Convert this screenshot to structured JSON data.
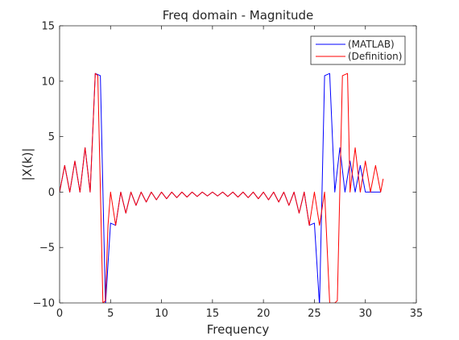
{
  "chart_data": {
    "type": "line",
    "title": "Freq domain - Magnitude",
    "xlabel": "Frequency",
    "ylabel": "|X(k)|",
    "xlim": [
      0,
      35
    ],
    "ylim": [
      -10,
      15
    ],
    "xticks": [
      0,
      5,
      10,
      15,
      20,
      25,
      30,
      35
    ],
    "yticks": [
      -10,
      -5,
      0,
      5,
      10,
      15
    ],
    "grid": false,
    "legend_position": "top-right",
    "series": [
      {
        "name": "(MATLAB)",
        "color": "#0000ff",
        "x": [
          0,
          0.5,
          1,
          1.5,
          2,
          2.5,
          3,
          3.5,
          4,
          4.5,
          5,
          5.5,
          6,
          6.5,
          7,
          7.5,
          8,
          8.5,
          9,
          9.5,
          10,
          10.5,
          11,
          11.5,
          12,
          12.5,
          13,
          13.5,
          14,
          14.5,
          15,
          15.5,
          16,
          16.5,
          17,
          17.5,
          18,
          18.5,
          19,
          19.5,
          20,
          20.5,
          21,
          21.5,
          22,
          22.5,
          23,
          23.5,
          24,
          24.5,
          25,
          25.5,
          26,
          26.5,
          27,
          27.5,
          28,
          28.5,
          29,
          29.5,
          30,
          30.5,
          31,
          31.5
        ],
        "y": [
          0,
          2.4,
          0,
          2.8,
          0,
          4.0,
          0,
          10.7,
          10.5,
          -10.2,
          -2.8,
          -3.0,
          0,
          -1.9,
          0,
          -1.2,
          0,
          -0.9,
          0,
          -0.7,
          0,
          -0.6,
          0,
          -0.5,
          0,
          -0.45,
          0,
          -0.4,
          0,
          -0.35,
          0,
          -0.35,
          0,
          -0.4,
          0,
          -0.45,
          0,
          -0.5,
          0,
          -0.6,
          0,
          -0.7,
          0,
          -0.9,
          0,
          -1.2,
          0,
          -1.9,
          0,
          -3.0,
          -2.8,
          -10.2,
          10.5,
          10.7,
          0,
          4.0,
          0,
          2.8,
          0,
          2.4,
          0,
          0,
          0,
          0
        ]
      },
      {
        "name": "(Definition)",
        "color": "#ff0000",
        "x": [
          0,
          0.5,
          1,
          1.5,
          2,
          2.5,
          3,
          3.5,
          3.75,
          4.25,
          4.5,
          4.75,
          5,
          5.5,
          6,
          6.5,
          7,
          7.5,
          8,
          8.5,
          9,
          9.5,
          10,
          10.5,
          11,
          11.5,
          12,
          12.5,
          13,
          13.5,
          14,
          14.5,
          15,
          15.5,
          16,
          16.5,
          17,
          17.5,
          18,
          18.5,
          19,
          19.5,
          20,
          20.5,
          21,
          21.5,
          22,
          22.5,
          23,
          23.5,
          24,
          24.5,
          25,
          25.5,
          26,
          26.5,
          27,
          27.25,
          27.75,
          28.25,
          28.5,
          29,
          29.5,
          30,
          30.5,
          31,
          31.5,
          31.75
        ],
        "y": [
          0,
          2.4,
          0,
          2.8,
          0,
          4.0,
          0,
          10.7,
          10.5,
          -10.0,
          -9.8,
          -3.0,
          0,
          -3.0,
          0,
          -1.9,
          0,
          -1.2,
          0,
          -0.9,
          0,
          -0.7,
          0,
          -0.6,
          0,
          -0.5,
          0,
          -0.45,
          0,
          -0.4,
          0,
          -0.35,
          0,
          -0.35,
          0,
          -0.4,
          0,
          -0.45,
          0,
          -0.5,
          0,
          -0.6,
          0,
          -0.7,
          0,
          -0.9,
          0,
          -1.2,
          0,
          -1.9,
          0,
          -3.0,
          0,
          -3.0,
          0,
          -10.0,
          -10.0,
          -9.8,
          10.5,
          10.7,
          0,
          4.0,
          0,
          2.8,
          0,
          2.4,
          0,
          1.2
        ]
      }
    ]
  }
}
